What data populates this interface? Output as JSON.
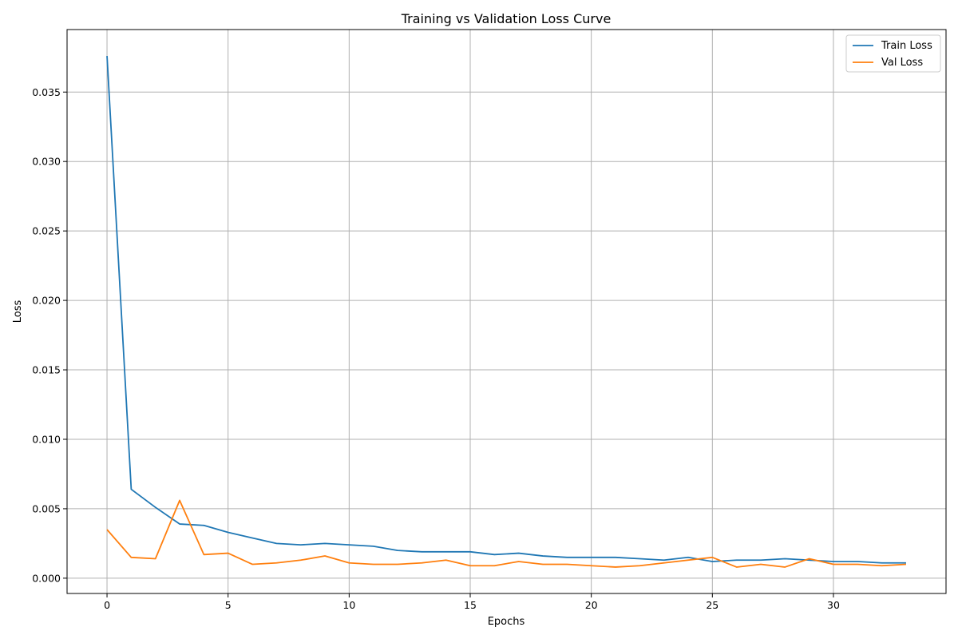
{
  "chart_data": {
    "type": "line",
    "title": "Training vs Validation Loss Curve",
    "xlabel": "Epochs",
    "ylabel": "Loss",
    "xlim": [
      -1.65,
      34.65
    ],
    "ylim": [
      -0.0011,
      0.0395
    ],
    "xticks": [
      0,
      5,
      10,
      15,
      20,
      25,
      30
    ],
    "xtick_labels": [
      "0",
      "5",
      "10",
      "15",
      "20",
      "25",
      "30"
    ],
    "yticks": [
      0.0,
      0.005,
      0.01,
      0.015,
      0.02,
      0.025,
      0.03,
      0.035
    ],
    "ytick_labels": [
      "0.000",
      "0.005",
      "0.010",
      "0.015",
      "0.020",
      "0.025",
      "0.030",
      "0.035"
    ],
    "grid": true,
    "legend_position": "top-right",
    "x": [
      0,
      1,
      2,
      3,
      4,
      5,
      6,
      7,
      8,
      9,
      10,
      11,
      12,
      13,
      14,
      15,
      16,
      17,
      18,
      19,
      20,
      21,
      22,
      23,
      24,
      25,
      26,
      27,
      28,
      29,
      30,
      31,
      32,
      33
    ],
    "series": [
      {
        "name": "Train Loss",
        "color": "#1f77b4",
        "values": [
          0.0376,
          0.0064,
          0.0051,
          0.0039,
          0.0038,
          0.0033,
          0.0029,
          0.0025,
          0.0024,
          0.0025,
          0.0024,
          0.0023,
          0.002,
          0.0019,
          0.0019,
          0.0019,
          0.0017,
          0.0018,
          0.0016,
          0.0015,
          0.0015,
          0.0015,
          0.0014,
          0.0013,
          0.0015,
          0.0012,
          0.0013,
          0.0013,
          0.0014,
          0.0013,
          0.0012,
          0.0012,
          0.0011,
          0.0011
        ]
      },
      {
        "name": "Val Loss",
        "color": "#ff7f0e",
        "values": [
          0.0035,
          0.0015,
          0.0014,
          0.0056,
          0.0017,
          0.0018,
          0.001,
          0.0011,
          0.0013,
          0.0016,
          0.0011,
          0.001,
          0.001,
          0.0011,
          0.0013,
          0.0009,
          0.0009,
          0.0012,
          0.001,
          0.001,
          0.0009,
          0.0008,
          0.0009,
          0.0011,
          0.0013,
          0.0015,
          0.0008,
          0.001,
          0.0008,
          0.0014,
          0.001,
          0.001,
          0.0009,
          0.001
        ]
      }
    ]
  }
}
